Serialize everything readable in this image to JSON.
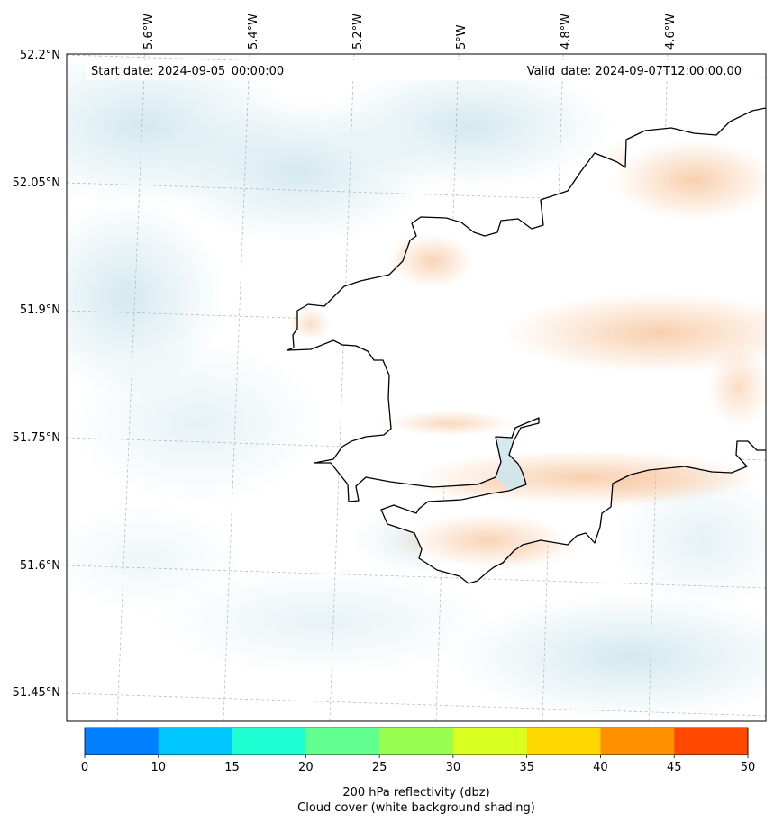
{
  "map": {
    "start_date": "Start date: 2024-09-05_00:00:00",
    "valid_date": "Valid_date: 2024-09-07T12:00:00.00",
    "lon_labels": [
      "5.6°W",
      "5.4°W",
      "5.2°W",
      "5°W",
      "4.8°W",
      "4.6°W"
    ],
    "lat_labels": [
      "52.2°N",
      "52.05°N",
      "51.9°N",
      "51.75°N",
      "51.6°N",
      "51.45°N"
    ],
    "colors": {
      "coastline": "#000000",
      "cloud_shading": "#cfe7ee",
      "reflectivity_low": "#f7c7a0",
      "gridline": "#b0b0b0"
    }
  },
  "colorbar": {
    "ticks": [
      "0",
      "10",
      "15",
      "20",
      "25",
      "30",
      "35",
      "40",
      "45",
      "50"
    ],
    "colors": [
      "#0080ff",
      "#00c8ff",
      "#20ffd4",
      "#60ff90",
      "#98ff50",
      "#d8ff20",
      "#ffd800",
      "#ff9000",
      "#ff4800"
    ],
    "label_line1": "200 hPa reflectivity (dbz)",
    "label_line2": "Cloud cover (white background shading)"
  }
}
